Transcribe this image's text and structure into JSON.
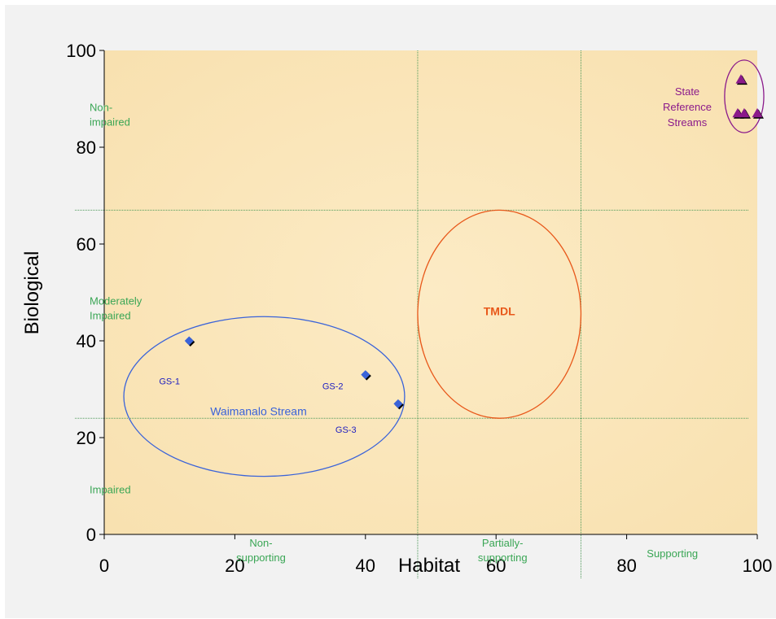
{
  "chart_data": {
    "type": "scatter",
    "xlabel": "Habitat",
    "ylabel": "Biological",
    "xlim": [
      0,
      100
    ],
    "ylim": [
      0,
      100
    ],
    "xticks": [
      "0",
      "20",
      "40",
      "60",
      "80",
      "100"
    ],
    "yticks": [
      "0",
      "20",
      "40",
      "60",
      "80",
      "100"
    ],
    "threshold_lines": {
      "x": [
        48,
        73
      ],
      "y": [
        24,
        67
      ]
    },
    "series": [
      {
        "marker": "diamond",
        "color": "#3a63d9",
        "points": [
          {
            "x": 13,
            "y": 40
          },
          {
            "x": 40,
            "y": 33
          },
          {
            "x": 45,
            "y": 27
          }
        ]
      },
      {
        "marker": "triangle",
        "color": "#8b1a8b",
        "points": [
          {
            "x": 97.5,
            "y": 94
          },
          {
            "x": 97,
            "y": 87
          },
          {
            "x": 98,
            "y": 87
          },
          {
            "x": 100,
            "y": 87
          }
        ]
      }
    ],
    "point_labels": [
      {
        "text": "GS-1",
        "x": 10,
        "y": 31
      },
      {
        "text": "GS-2",
        "x": 35,
        "y": 30
      },
      {
        "text": "GS-3",
        "x": 37,
        "y": 21
      }
    ],
    "zone_labels_y": [
      {
        "lines": [
          "Non-",
          "impaired"
        ],
        "y": 87.5
      },
      {
        "lines": [
          "Moderately",
          "Impaired"
        ],
        "y": 47.5
      },
      {
        "lines": [
          "Impaired"
        ],
        "y": 8.5
      }
    ],
    "zone_labels_x": [
      {
        "lines": [
          "Non-",
          "supporting"
        ],
        "x": 24
      },
      {
        "lines": [
          "Partially-",
          "supporting"
        ],
        "x": 61
      },
      {
        "lines": [
          "Supporting"
        ],
        "x": 87
      }
    ],
    "ellipses": [
      {
        "label": "Waimanalo Stream",
        "cx": 24.5,
        "cy": 28.5,
        "rx": 21.5,
        "ry": 16.5,
        "color": "#3a63d9"
      },
      {
        "label": "TMDL",
        "cx": 60.5,
        "cy": 45.5,
        "rx": 12.5,
        "ry": 21.5,
        "color": "#e8581a"
      },
      {
        "lines": [
          "State",
          "Reference",
          "Streams"
        ],
        "cx": 98,
        "cy": 90.5,
        "rx": 3,
        "ry": 7.5,
        "color": "#8b1a8b"
      }
    ],
    "colors": {
      "plot_background": "#fbe6b9",
      "gridline": "#4f9a5b",
      "frame": "#f2f2f2"
    }
  }
}
